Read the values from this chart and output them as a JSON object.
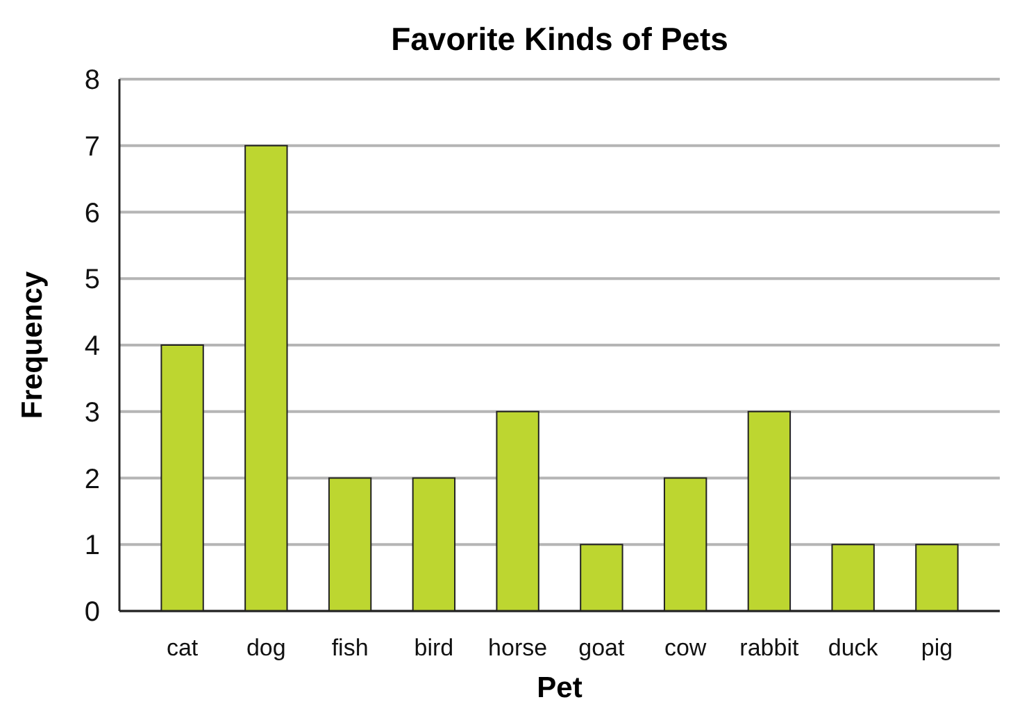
{
  "chart_data": {
    "type": "bar",
    "title": "Favorite Kinds of Pets",
    "xlabel": "Pet",
    "ylabel": "Frequency",
    "categories": [
      "cat",
      "dog",
      "fish",
      "bird",
      "horse",
      "goat",
      "cow",
      "rabbit",
      "duck",
      "pig"
    ],
    "values": [
      4,
      7,
      2,
      2,
      3,
      1,
      2,
      3,
      1,
      1
    ],
    "color": "#bdd630",
    "ylim": [
      0,
      8
    ],
    "yticks": [
      0,
      1,
      2,
      3,
      4,
      5,
      6,
      7,
      8
    ],
    "grid": "y"
  }
}
